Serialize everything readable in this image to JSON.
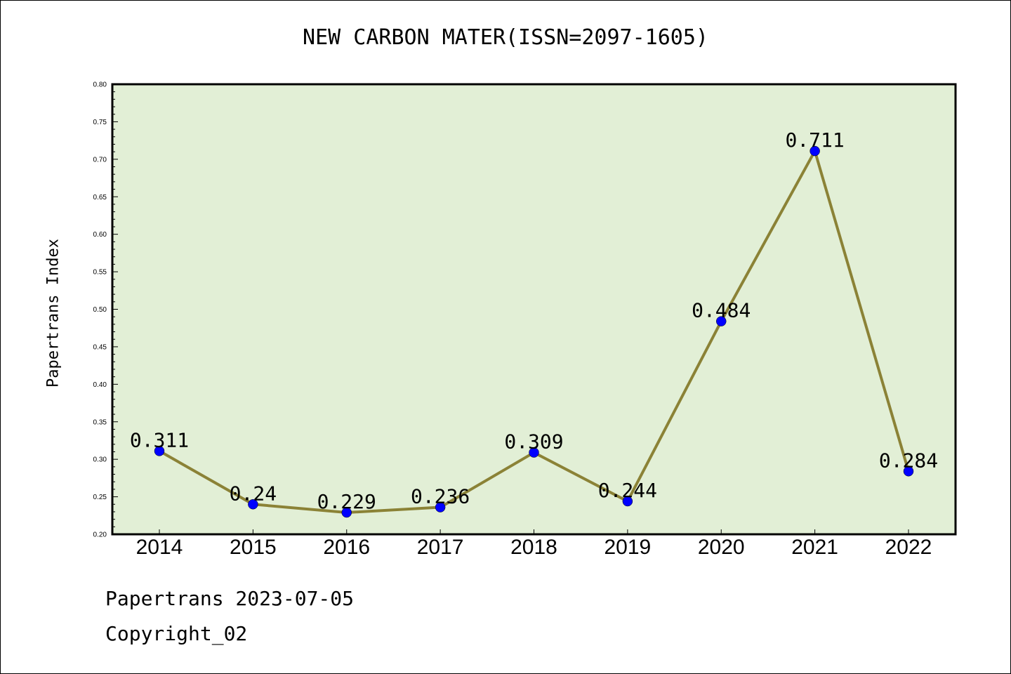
{
  "chart_data": {
    "type": "line",
    "title": "NEW CARBON MATER(ISSN=2097-1605)",
    "xlabel": "",
    "ylabel": "Papertrans Index",
    "categories": [
      "2014",
      "2015",
      "2016",
      "2017",
      "2018",
      "2019",
      "2020",
      "2021",
      "2022"
    ],
    "series": [
      {
        "values": [
          0.311,
          0.24,
          0.229,
          0.236,
          0.309,
          0.244,
          0.484,
          0.711,
          0.284
        ]
      }
    ],
    "data_labels": [
      "0.311",
      "0.24",
      "0.229",
      "0.236",
      "0.309",
      "0.244",
      "0.484",
      "0.711",
      "0.284"
    ],
    "ylim": [
      0.2,
      0.8
    ],
    "yticks": [
      "0.20",
      "0.25",
      "0.30",
      "0.35",
      "0.40",
      "0.45",
      "0.50",
      "0.55",
      "0.60",
      "0.65",
      "0.70",
      "0.75",
      "0.80"
    ],
    "grid": false,
    "colors": {
      "plot_background": "#e2efd6",
      "line": "#8b8236",
      "marker": "#0000ff"
    }
  },
  "footer": {
    "date_text": "Papertrans 2023-07-05",
    "copyright_text": "Copyright_02"
  }
}
